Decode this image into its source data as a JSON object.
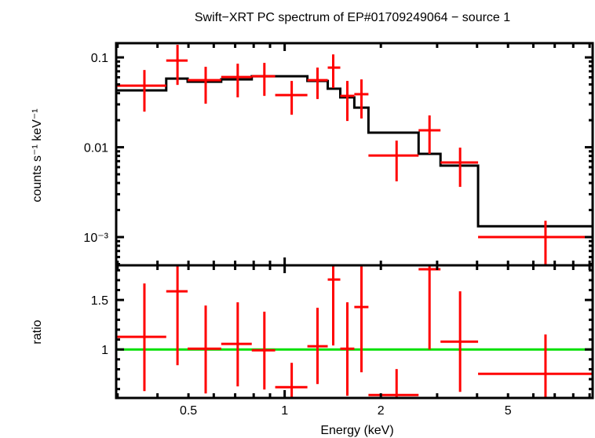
{
  "chart_data": {
    "type": "scatter",
    "title": "Swift−XRT PC spectrum of EP#01709249064 − source 1",
    "xlabel": "Energy (keV)",
    "x_scale": "log",
    "xlim": [
      0.297,
      9.2
    ],
    "x_tick_labels": [
      "0.5",
      "1",
      "2",
      "5"
    ],
    "x_ticks": [
      0.5,
      1,
      2,
      5
    ],
    "colors": {
      "data": "#ff0000",
      "model": "#000000",
      "unity": "#00e000"
    },
    "grid": false,
    "panels": [
      {
        "name": "spectrum",
        "ylabel": "counts s⁻¹ keV⁻¹",
        "y_scale": "log",
        "ylim": [
          0.000485,
          0.144
        ],
        "y_ticks": [
          0.1,
          0.01,
          0.001
        ],
        "y_tick_labels": [
          "0.1",
          "0.01",
          "10⁻³"
        ],
        "data": [
          {
            "x": 0.364,
            "xlo": 0.297,
            "xhi": 0.426,
            "y": 0.0485,
            "ylo": 0.0249,
            "yhi": 0.0724
          },
          {
            "x": 0.462,
            "xlo": 0.426,
            "xhi": 0.497,
            "y": 0.0923,
            "ylo": 0.0494,
            "yhi": 0.138
          },
          {
            "x": 0.566,
            "xlo": 0.497,
            "xhi": 0.633,
            "y": 0.0558,
            "ylo": 0.0305,
            "yhi": 0.0786
          },
          {
            "x": 0.713,
            "xlo": 0.633,
            "xhi": 0.789,
            "y": 0.0605,
            "ylo": 0.0359,
            "yhi": 0.0851
          },
          {
            "x": 0.864,
            "xlo": 0.789,
            "xhi": 0.934,
            "y": 0.0617,
            "ylo": 0.0373,
            "yhi": 0.0869
          },
          {
            "x": 1.052,
            "xlo": 0.934,
            "xhi": 1.178,
            "y": 0.0381,
            "ylo": 0.023,
            "yhi": 0.0547
          },
          {
            "x": 1.267,
            "xlo": 1.178,
            "xhi": 1.364,
            "y": 0.0558,
            "ylo": 0.0344,
            "yhi": 0.077
          },
          {
            "x": 1.419,
            "xlo": 1.364,
            "xhi": 1.493,
            "y": 0.077,
            "ylo": 0.0456,
            "yhi": 0.108
          },
          {
            "x": 1.571,
            "xlo": 1.493,
            "xhi": 1.652,
            "y": 0.0373,
            "ylo": 0.0196,
            "yhi": 0.0547
          },
          {
            "x": 1.739,
            "xlo": 1.652,
            "xhi": 1.829,
            "y": 0.0389,
            "ylo": 0.0209,
            "yhi": 0.0569
          },
          {
            "x": 2.24,
            "xlo": 1.829,
            "xhi": 2.625,
            "y": 0.00809,
            "ylo": 0.00417,
            "yhi": 0.01185
          },
          {
            "x": 2.84,
            "xlo": 2.625,
            "xhi": 3.074,
            "y": 0.01542,
            "ylo": 0.00844,
            "yhi": 0.0226
          },
          {
            "x": 3.54,
            "xlo": 3.074,
            "xhi": 4.03,
            "y": 0.00676,
            "ylo": 0.00362,
            "yhi": 0.0099
          },
          {
            "x": 6.55,
            "xlo": 4.03,
            "xhi": 9.19,
            "y": 0.001,
            "ylo": 0.0004,
            "yhi": 0.00152
          }
        ],
        "model": [
          {
            "xlo": 0.297,
            "xhi": 0.426,
            "y": 0.043
          },
          {
            "xlo": 0.426,
            "xhi": 0.497,
            "y": 0.0581
          },
          {
            "xlo": 0.497,
            "xhi": 0.633,
            "y": 0.0536
          },
          {
            "xlo": 0.633,
            "xhi": 0.789,
            "y": 0.0569
          },
          {
            "xlo": 0.789,
            "xhi": 1.178,
            "y": 0.0617
          },
          {
            "xlo": 1.178,
            "xhi": 1.364,
            "y": 0.0547
          },
          {
            "xlo": 1.364,
            "xhi": 1.493,
            "y": 0.0448
          },
          {
            "xlo": 1.493,
            "xhi": 1.652,
            "y": 0.0359
          },
          {
            "xlo": 1.652,
            "xhi": 1.829,
            "y": 0.0276
          },
          {
            "xlo": 1.829,
            "xhi": 2.625,
            "y": 0.01452
          },
          {
            "xlo": 2.625,
            "xhi": 3.074,
            "y": 0.00844
          },
          {
            "xlo": 3.074,
            "xhi": 4.03,
            "y": 0.00624
          },
          {
            "xlo": 4.03,
            "xhi": 9.2,
            "y": 0.00132
          }
        ]
      },
      {
        "name": "ratio",
        "ylabel": "ratio",
        "y_scale": "linear",
        "ylim": [
          0.51,
          1.85
        ],
        "y_ticks": [
          1.5,
          1
        ],
        "y_tick_labels": [
          "1.5",
          "1"
        ],
        "reference_line": 1,
        "data": [
          {
            "x": 0.364,
            "xlo": 0.297,
            "xhi": 0.426,
            "y": 1.127,
            "ylo": 0.579,
            "yhi": 1.667
          },
          {
            "x": 0.462,
            "xlo": 0.426,
            "xhi": 0.497,
            "y": 1.587,
            "ylo": 0.841,
            "yhi": 1.85
          },
          {
            "x": 0.566,
            "xlo": 0.497,
            "xhi": 0.633,
            "y": 1.008,
            "ylo": 0.556,
            "yhi": 1.444
          },
          {
            "x": 0.713,
            "xlo": 0.633,
            "xhi": 0.789,
            "y": 1.056,
            "ylo": 0.627,
            "yhi": 1.476
          },
          {
            "x": 0.864,
            "xlo": 0.789,
            "xhi": 0.934,
            "y": 0.992,
            "ylo": 0.595,
            "yhi": 1.381
          },
          {
            "x": 1.052,
            "xlo": 0.934,
            "xhi": 1.178,
            "y": 0.619,
            "ylo": 0.5,
            "yhi": 0.865
          },
          {
            "x": 1.267,
            "xlo": 1.178,
            "xhi": 1.364,
            "y": 1.032,
            "ylo": 0.651,
            "yhi": 1.421
          },
          {
            "x": 1.419,
            "xlo": 1.364,
            "xhi": 1.493,
            "y": 1.706,
            "ylo": 1.04,
            "yhi": 1.85
          },
          {
            "x": 1.571,
            "xlo": 1.493,
            "xhi": 1.652,
            "y": 1.008,
            "ylo": 0.532,
            "yhi": 1.476
          },
          {
            "x": 1.739,
            "xlo": 1.652,
            "xhi": 1.829,
            "y": 1.429,
            "ylo": 0.77,
            "yhi": 1.85
          },
          {
            "x": 2.24,
            "xlo": 1.829,
            "xhi": 2.625,
            "y": 0.54,
            "ylo": 0.5,
            "yhi": 0.802
          },
          {
            "x": 2.84,
            "xlo": 2.625,
            "xhi": 3.074,
            "y": 1.81,
            "ylo": 1.0,
            "yhi": 1.85
          },
          {
            "x": 3.54,
            "xlo": 3.074,
            "xhi": 4.03,
            "y": 1.079,
            "ylo": 0.571,
            "yhi": 1.587
          },
          {
            "x": 6.55,
            "xlo": 4.03,
            "xhi": 9.19,
            "y": 0.754,
            "ylo": 0.5,
            "yhi": 1.151
          }
        ]
      }
    ]
  }
}
